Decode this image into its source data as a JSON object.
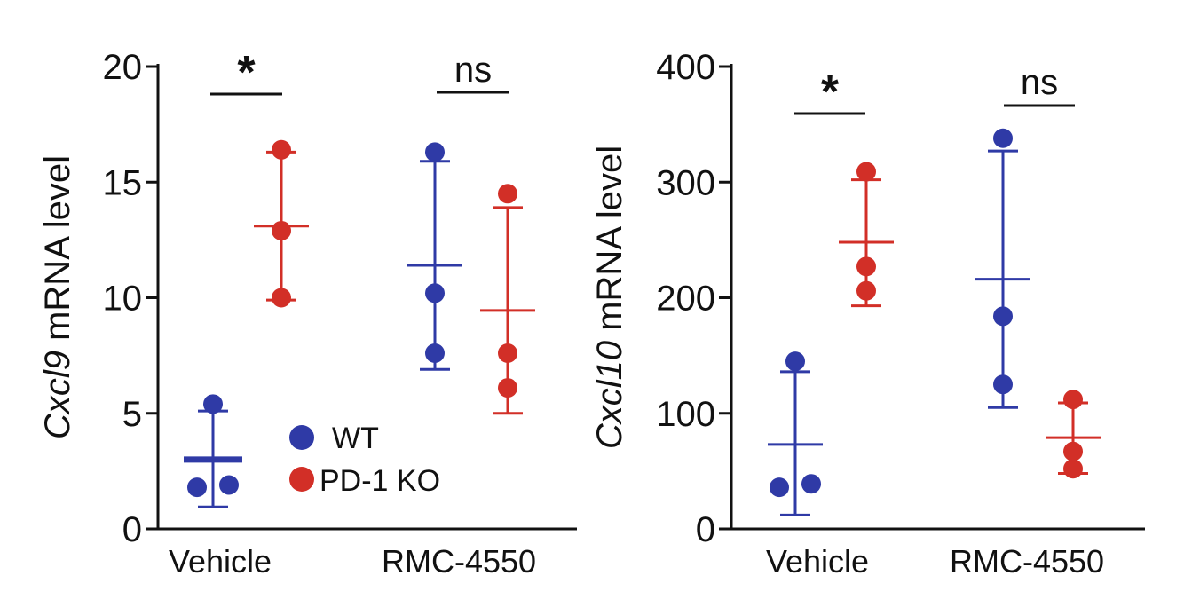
{
  "colors": {
    "wt": "#2f3aa6",
    "ko": "#d22f27",
    "axis": "#111111"
  },
  "chart_data": [
    {
      "type": "scatter",
      "ylabel_italic": "Cxcl9",
      "ylabel_rest": " mRNA level",
      "ylim": [
        0,
        20
      ],
      "yticks": [
        0,
        5,
        10,
        15,
        20
      ],
      "categories": [
        "Vehicle",
        "RMC-4550"
      ],
      "legend": {
        "placement": "center",
        "entries": [
          "WT",
          "PD-1 KO"
        ]
      },
      "groups": [
        {
          "category": "Vehicle",
          "series": "WT",
          "color_key": "wt",
          "points": [
            5.4,
            1.8,
            1.9
          ],
          "mean": 3.0,
          "err_low": 0.95,
          "err_high": 5.1
        },
        {
          "category": "Vehicle",
          "series": "PD-1 KO",
          "color_key": "ko",
          "points": [
            16.4,
            12.9,
            10.0
          ],
          "mean": 13.1,
          "err_low": 9.9,
          "err_high": 16.3
        },
        {
          "category": "RMC-4550",
          "series": "WT",
          "color_key": "wt",
          "points": [
            16.3,
            10.2,
            7.6
          ],
          "mean": 11.4,
          "err_low": 6.9,
          "err_high": 15.9
        },
        {
          "category": "RMC-4550",
          "series": "PD-1 KO",
          "color_key": "ko",
          "points": [
            14.5,
            7.6,
            6.1
          ],
          "mean": 9.45,
          "err_low": 5.0,
          "err_high": 13.9
        }
      ],
      "significance": [
        {
          "category": "Vehicle",
          "label": "*"
        },
        {
          "category": "RMC-4550",
          "label": "ns"
        }
      ]
    },
    {
      "type": "scatter",
      "ylabel_italic": "Cxcl10",
      "ylabel_rest": " mRNA level",
      "ylim": [
        0,
        400
      ],
      "yticks": [
        0,
        100,
        200,
        300,
        400
      ],
      "categories": [
        "Vehicle",
        "RMC-4550"
      ],
      "groups": [
        {
          "category": "Vehicle",
          "series": "WT",
          "color_key": "wt",
          "points": [
            145,
            36,
            39
          ],
          "mean": 73,
          "err_low": 12,
          "err_high": 136
        },
        {
          "category": "Vehicle",
          "series": "PD-1 KO",
          "color_key": "ko",
          "points": [
            309,
            227,
            206
          ],
          "mean": 248,
          "err_low": 193,
          "err_high": 302
        },
        {
          "category": "RMC-4550",
          "series": "WT",
          "color_key": "wt",
          "points": [
            338,
            184,
            125
          ],
          "mean": 216,
          "err_low": 105,
          "err_high": 327
        },
        {
          "category": "RMC-4550",
          "series": "PD-1 KO",
          "color_key": "ko",
          "points": [
            112,
            52,
            67
          ],
          "mean": 79,
          "err_low": 48,
          "err_high": 109
        }
      ],
      "significance": [
        {
          "category": "Vehicle",
          "label": "*"
        },
        {
          "category": "RMC-4550",
          "label": "ns"
        }
      ]
    }
  ]
}
